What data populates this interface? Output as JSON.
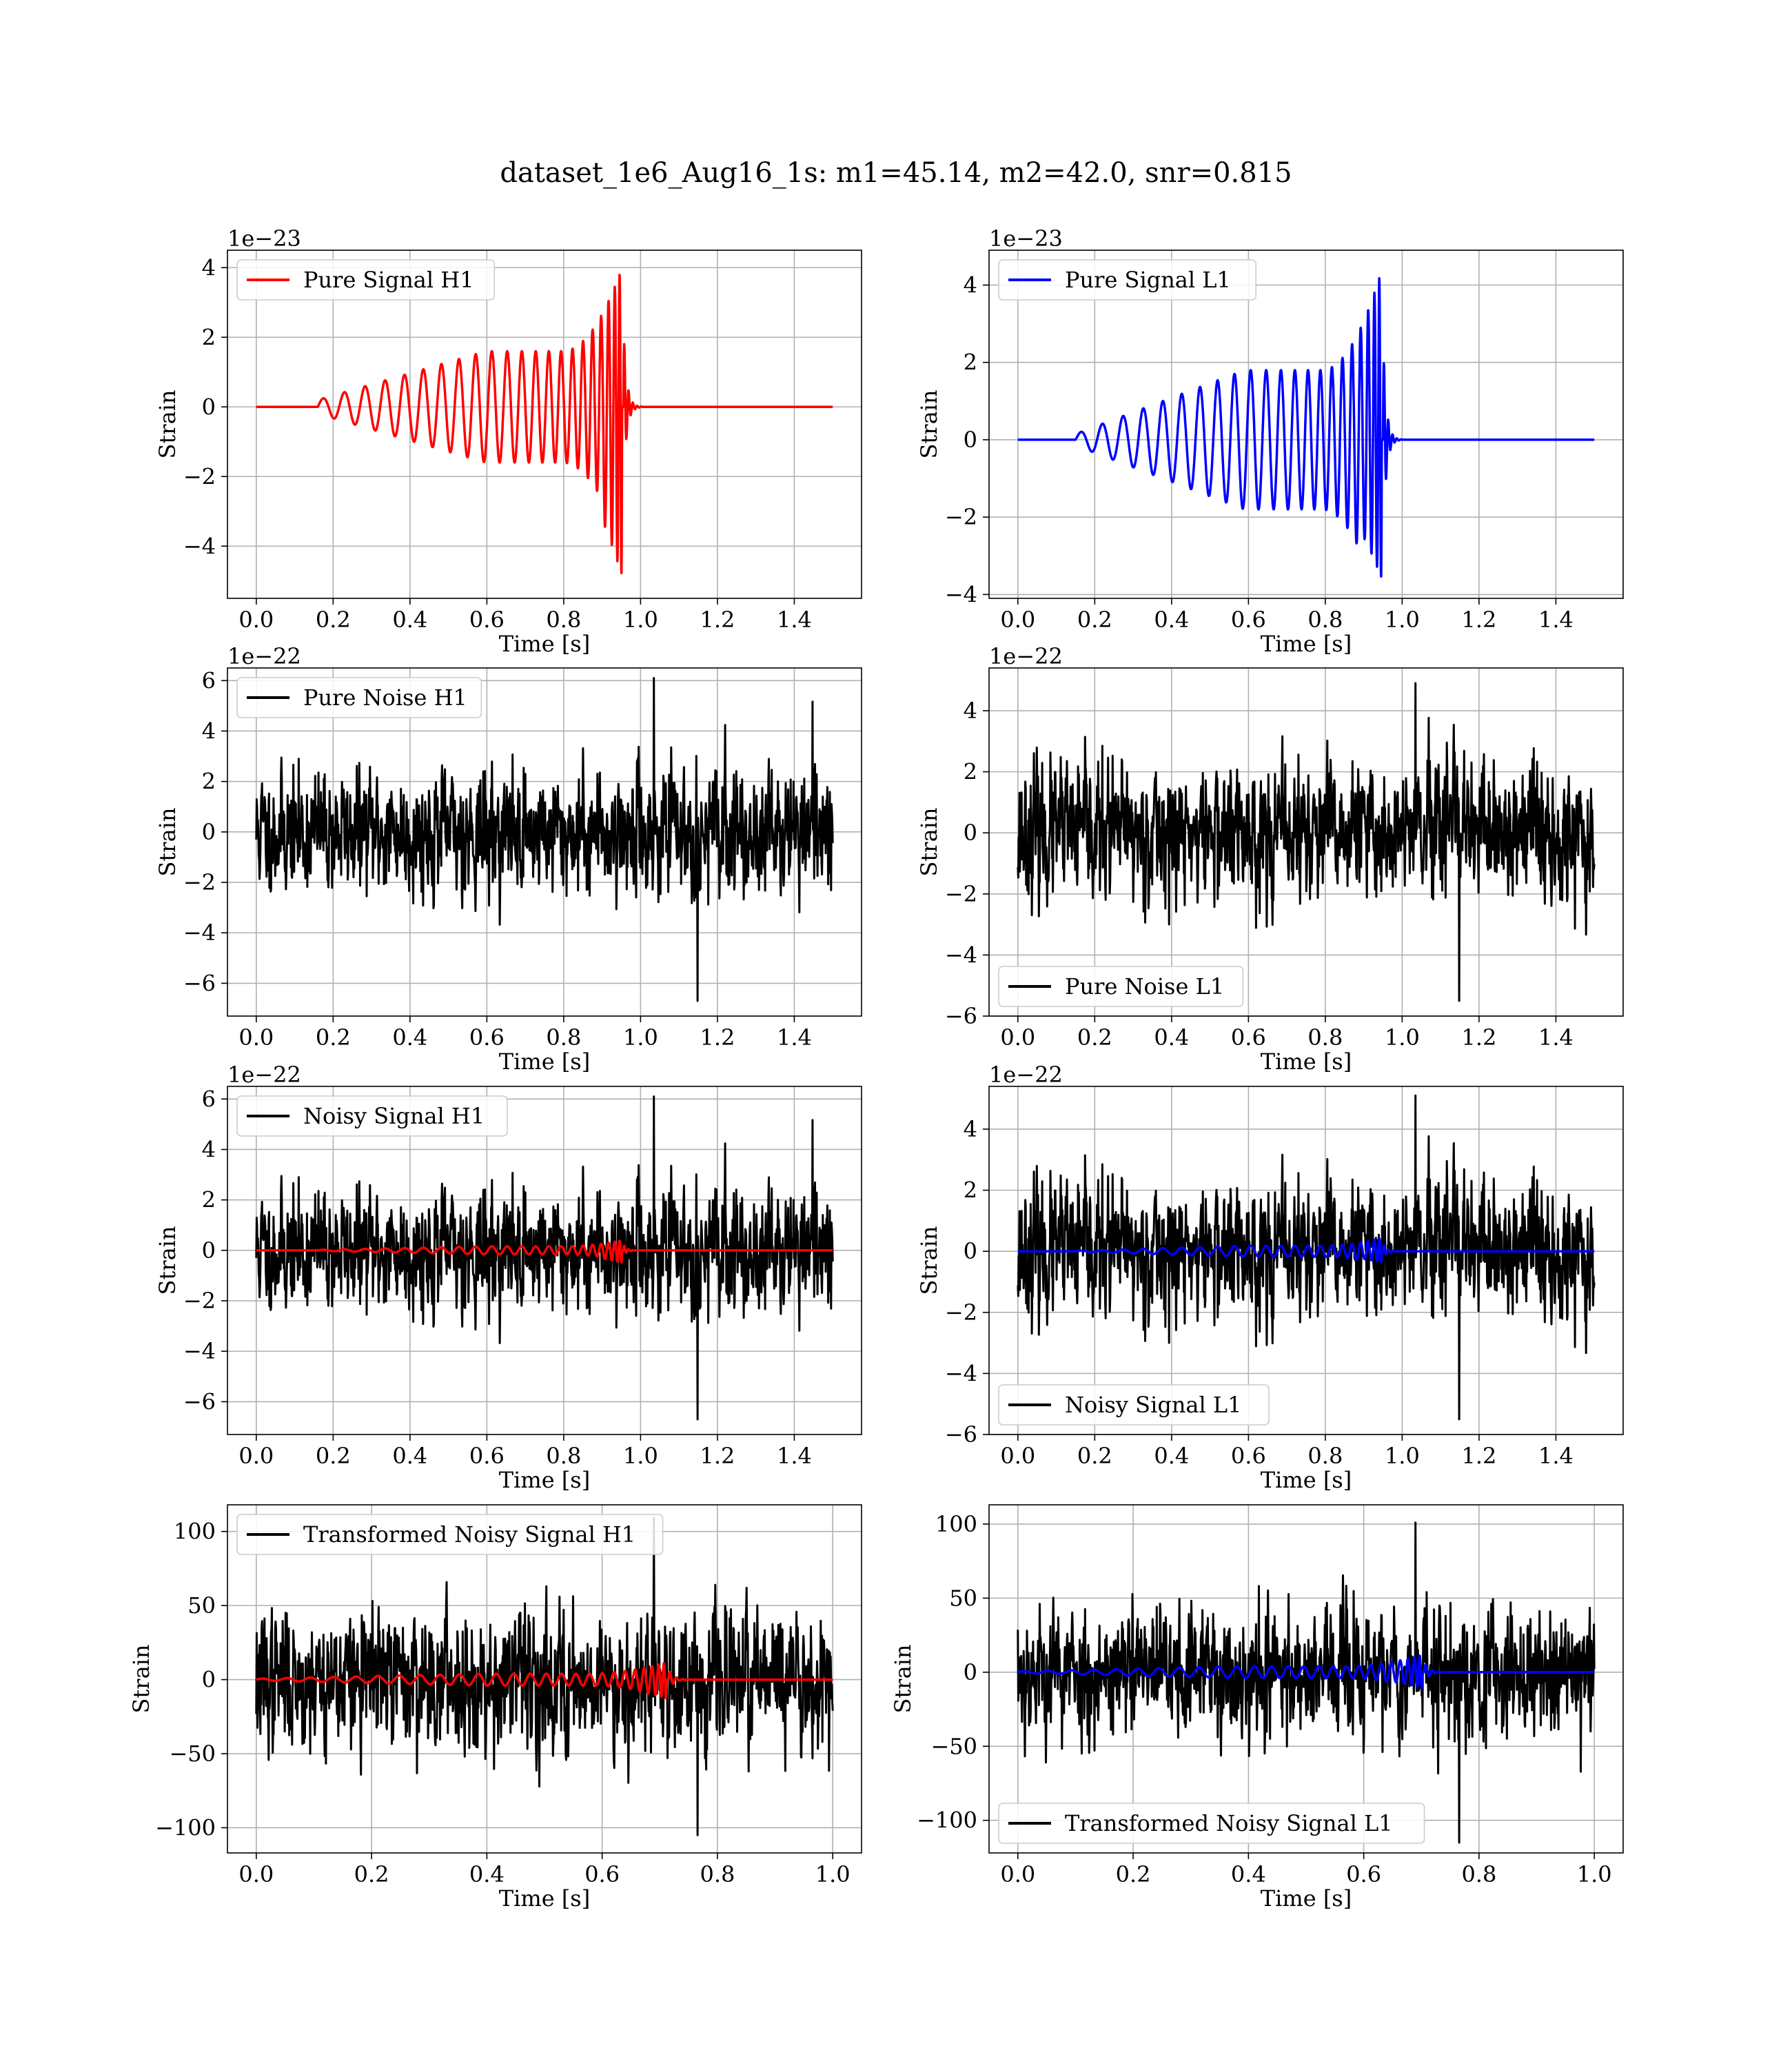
{
  "figure": {
    "title": "dataset_1e6_Aug16_1s: m1=45.14, m2=42.0, snr=0.815"
  },
  "colors": {
    "h1_signal": "#ff0000",
    "l1_signal": "#0000ff",
    "noise": "#000000",
    "grid": "#b0b0b0"
  },
  "chart_data": [
    {
      "id": "pure-signal-h1",
      "type": "line",
      "title": "",
      "xlabel": "Time [s]",
      "ylabel": "Strain",
      "offset_text": "1e−23",
      "xlim": [
        -0.075,
        1.575
      ],
      "ylim": [
        -5.5,
        4.5
      ],
      "xticks": [
        0.0,
        0.2,
        0.4,
        0.6,
        0.8,
        1.0,
        1.2,
        1.4
      ],
      "xtick_labels": [
        "0.0",
        "0.2",
        "0.4",
        "0.6",
        "0.8",
        "1.0",
        "1.2",
        "1.4"
      ],
      "yticks": [
        -4,
        -2,
        0,
        2,
        4
      ],
      "ytick_labels": [
        "−4",
        "−2",
        "0",
        "2",
        "4"
      ],
      "legend_position": "top-left",
      "grid": true,
      "series": [
        {
          "name": "Pure Signal H1",
          "kind": "chirp",
          "color": "#ff0000",
          "x_start": 0.0,
          "x_end": 1.5,
          "t_start": 0.16,
          "t_merge": 0.955,
          "peak": 4.1,
          "trough": -5.0,
          "early_amp": 0.2,
          "mid_amp": 1.6,
          "cycles": 22
        }
      ]
    },
    {
      "id": "pure-signal-l1",
      "type": "line",
      "title": "",
      "xlabel": "Time [s]",
      "ylabel": "Strain",
      "offset_text": "1e−23",
      "xlim": [
        -0.075,
        1.575
      ],
      "ylim": [
        -4.1,
        4.9
      ],
      "xticks": [
        0.0,
        0.2,
        0.4,
        0.6,
        0.8,
        1.0,
        1.2,
        1.4
      ],
      "xtick_labels": [
        "0.0",
        "0.2",
        "0.4",
        "0.6",
        "0.8",
        "1.0",
        "1.2",
        "1.4"
      ],
      "yticks": [
        -4,
        -2,
        0,
        2,
        4
      ],
      "ytick_labels": [
        "−4",
        "−2",
        "0",
        "2",
        "4"
      ],
      "legend_position": "top-left",
      "grid": true,
      "series": [
        {
          "name": "Pure Signal L1",
          "kind": "chirp",
          "color": "#0000ff",
          "x_start": 0.0,
          "x_end": 1.5,
          "t_start": 0.15,
          "t_merge": 0.95,
          "peak": 4.5,
          "trough": -3.7,
          "early_amp": 0.15,
          "mid_amp": 1.8,
          "cycles": 22
        }
      ]
    },
    {
      "id": "pure-noise-h1",
      "type": "line",
      "title": "",
      "xlabel": "Time [s]",
      "ylabel": "Strain",
      "offset_text": "1e−22",
      "xlim": [
        -0.075,
        1.575
      ],
      "ylim": [
        -7.3,
        6.5
      ],
      "xticks": [
        0.0,
        0.2,
        0.4,
        0.6,
        0.8,
        1.0,
        1.2,
        1.4
      ],
      "xtick_labels": [
        "0.0",
        "0.2",
        "0.4",
        "0.6",
        "0.8",
        "1.0",
        "1.2",
        "1.4"
      ],
      "yticks": [
        -6,
        -4,
        -2,
        0,
        2,
        4,
        6
      ],
      "ytick_labels": [
        "−6",
        "−4",
        "−2",
        "0",
        "2",
        "4",
        "6"
      ],
      "legend_position": "top-left",
      "grid": true,
      "series": [
        {
          "name": "Pure Noise H1",
          "kind": "noise",
          "color": "#000000",
          "x_start": 0.0,
          "x_end": 1.5,
          "max": 6.1,
          "min": -6.7,
          "sigma": 1.45,
          "seed": 11
        }
      ]
    },
    {
      "id": "pure-noise-l1",
      "type": "line",
      "title": "",
      "xlabel": "Time [s]",
      "ylabel": "Strain",
      "offset_text": "1e−22",
      "xlim": [
        -0.075,
        1.575
      ],
      "ylim": [
        -6.0,
        5.4
      ],
      "xticks": [
        0.0,
        0.2,
        0.4,
        0.6,
        0.8,
        1.0,
        1.2,
        1.4
      ],
      "xtick_labels": [
        "0.0",
        "0.2",
        "0.4",
        "0.6",
        "0.8",
        "1.0",
        "1.2",
        "1.4"
      ],
      "yticks": [
        -6,
        -4,
        -2,
        0,
        2,
        4
      ],
      "ytick_labels": [
        "−6",
        "−4",
        "−2",
        "0",
        "2",
        "4"
      ],
      "legend_position": "bottom-left",
      "grid": true,
      "series": [
        {
          "name": "Pure Noise L1",
          "kind": "noise",
          "color": "#000000",
          "x_start": 0.0,
          "x_end": 1.5,
          "max": 4.9,
          "min": -5.5,
          "sigma": 1.35,
          "seed": 23
        }
      ]
    },
    {
      "id": "noisy-signal-h1",
      "type": "line",
      "title": "",
      "xlabel": "Time [s]",
      "ylabel": "Strain",
      "offset_text": "1e−22",
      "xlim": [
        -0.075,
        1.575
      ],
      "ylim": [
        -7.3,
        6.5
      ],
      "xticks": [
        0.0,
        0.2,
        0.4,
        0.6,
        0.8,
        1.0,
        1.2,
        1.4
      ],
      "xtick_labels": [
        "0.0",
        "0.2",
        "0.4",
        "0.6",
        "0.8",
        "1.0",
        "1.2",
        "1.4"
      ],
      "yticks": [
        -6,
        -4,
        -2,
        0,
        2,
        4,
        6
      ],
      "ytick_labels": [
        "−6",
        "−4",
        "−2",
        "0",
        "2",
        "4",
        "6"
      ],
      "legend_position": "top-left",
      "grid": true,
      "series": [
        {
          "name": "Noisy Signal H1",
          "kind": "noise",
          "color": "#000000",
          "x_start": 0.0,
          "x_end": 1.5,
          "max": 6.1,
          "min": -6.7,
          "sigma": 1.45,
          "seed": 11
        },
        {
          "name": "",
          "kind": "chirp",
          "color": "#ff0000",
          "x_start": 0.0,
          "x_end": 1.5,
          "t_start": 0.16,
          "t_merge": 0.955,
          "peak": 0.41,
          "trough": -0.5,
          "early_amp": 0.02,
          "mid_amp": 0.16,
          "cycles": 22
        }
      ]
    },
    {
      "id": "noisy-signal-l1",
      "type": "line",
      "title": "",
      "xlabel": "Time [s]",
      "ylabel": "Strain",
      "offset_text": "1e−22",
      "xlim": [
        -0.075,
        1.575
      ],
      "ylim": [
        -6.0,
        5.4
      ],
      "xticks": [
        0.0,
        0.2,
        0.4,
        0.6,
        0.8,
        1.0,
        1.2,
        1.4
      ],
      "xtick_labels": [
        "0.0",
        "0.2",
        "0.4",
        "0.6",
        "0.8",
        "1.0",
        "1.2",
        "1.4"
      ],
      "yticks": [
        -6,
        -4,
        -2,
        0,
        2,
        4
      ],
      "ytick_labels": [
        "−6",
        "−4",
        "−2",
        "0",
        "2",
        "4"
      ],
      "legend_position": "bottom-left",
      "grid": true,
      "series": [
        {
          "name": "Noisy Signal L1",
          "kind": "noise",
          "color": "#000000",
          "x_start": 0.0,
          "x_end": 1.5,
          "max": 5.1,
          "min": -5.5,
          "sigma": 1.35,
          "seed": 23
        },
        {
          "name": "",
          "kind": "chirp",
          "color": "#0000ff",
          "x_start": 0.0,
          "x_end": 1.5,
          "t_start": 0.15,
          "t_merge": 0.95,
          "peak": 0.45,
          "trough": -0.37,
          "early_amp": 0.015,
          "mid_amp": 0.18,
          "cycles": 22
        }
      ]
    },
    {
      "id": "transformed-noisy-signal-h1",
      "type": "line",
      "title": "",
      "xlabel": "Time [s]",
      "ylabel": "Strain",
      "offset_text": "",
      "xlim": [
        -0.05,
        1.05
      ],
      "ylim": [
        -117,
        118
      ],
      "xticks": [
        0.0,
        0.2,
        0.4,
        0.6,
        0.8,
        1.0
      ],
      "xtick_labels": [
        "0.0",
        "0.2",
        "0.4",
        "0.6",
        "0.8",
        "1.0"
      ],
      "yticks": [
        -100,
        -50,
        0,
        50,
        100
      ],
      "ytick_labels": [
        "−100",
        "−50",
        "0",
        "50",
        "100"
      ],
      "legend_position": "top-left",
      "grid": true,
      "series": [
        {
          "name": "Transformed Noisy Signal H1",
          "kind": "noise",
          "color": "#000000",
          "x_start": 0.0,
          "x_end": 1.0,
          "max": 109,
          "min": -105,
          "sigma": 28,
          "seed": 37
        },
        {
          "name": "",
          "kind": "chirp",
          "color": "#ff0000",
          "x_start": 0.0,
          "x_end": 1.0,
          "t_start": 0.0,
          "t_merge": 0.715,
          "peak": 12,
          "trough": -13,
          "early_amp": 0.6,
          "mid_amp": 4,
          "cycles": 26
        }
      ]
    },
    {
      "id": "transformed-noisy-signal-l1",
      "type": "line",
      "title": "",
      "xlabel": "Time [s]",
      "ylabel": "Strain",
      "offset_text": "",
      "xlim": [
        -0.05,
        1.05
      ],
      "ylim": [
        -122,
        113
      ],
      "xticks": [
        0.0,
        0.2,
        0.4,
        0.6,
        0.8,
        1.0
      ],
      "xtick_labels": [
        "0.0",
        "0.2",
        "0.4",
        "0.6",
        "0.8",
        "1.0"
      ],
      "yticks": [
        -100,
        -50,
        0,
        50,
        100
      ],
      "ytick_labels": [
        "−100",
        "−50",
        "0",
        "50",
        "100"
      ],
      "legend_position": "bottom-left",
      "grid": true,
      "series": [
        {
          "name": "Transformed Noisy Signal L1",
          "kind": "noise",
          "color": "#000000",
          "x_start": 0.0,
          "x_end": 1.0,
          "max": 101,
          "min": -115,
          "sigma": 27,
          "seed": 53
        },
        {
          "name": "",
          "kind": "chirp",
          "color": "#0000ff",
          "x_start": 0.0,
          "x_end": 1.0,
          "t_start": 0.0,
          "t_merge": 0.705,
          "peak": 12,
          "trough": -11,
          "early_amp": 0.5,
          "mid_amp": 4,
          "cycles": 26
        }
      ]
    }
  ]
}
